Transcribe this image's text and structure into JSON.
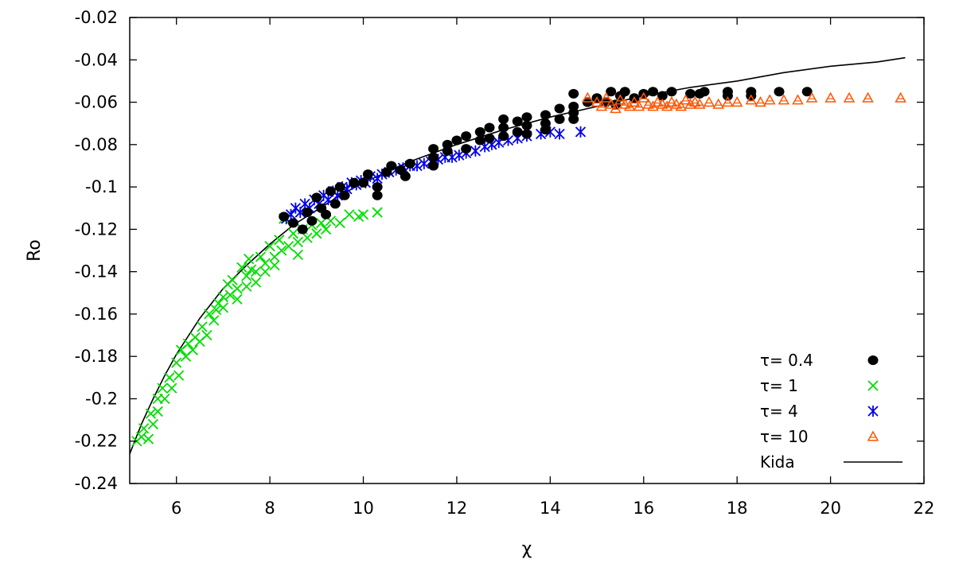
{
  "chart_data": {
    "type": "scatter",
    "title": "",
    "xlabel": "χ",
    "ylabel": "Ro",
    "xlim": [
      5,
      22
    ],
    "ylim": [
      -0.24,
      -0.02
    ],
    "xticks": [
      "6",
      "8",
      "10",
      "12",
      "14",
      "16",
      "18",
      "20",
      "22"
    ],
    "yticks": [
      "-0.02",
      "-0.04",
      "-0.06",
      "-0.08",
      "-0.1",
      "-0.12",
      "-0.14",
      "-0.16",
      "-0.18",
      "-0.2",
      "-0.22",
      "-0.24"
    ],
    "grid": false,
    "legend_position": "bottom-right",
    "series": [
      {
        "name": "τ= 0.4",
        "marker": "filled-circle",
        "color": "#000000",
        "points": [
          [
            8.3,
            -0.114
          ],
          [
            8.5,
            -0.117
          ],
          [
            8.7,
            -0.12
          ],
          [
            8.8,
            -0.112
          ],
          [
            8.9,
            -0.116
          ],
          [
            9.0,
            -0.105
          ],
          [
            9.1,
            -0.11
          ],
          [
            9.2,
            -0.113
          ],
          [
            9.3,
            -0.102
          ],
          [
            9.4,
            -0.108
          ],
          [
            9.5,
            -0.1
          ],
          [
            9.6,
            -0.104
          ],
          [
            9.8,
            -0.098
          ],
          [
            10.0,
            -0.098
          ],
          [
            10.1,
            -0.094
          ],
          [
            10.3,
            -0.1
          ],
          [
            10.3,
            -0.104
          ],
          [
            10.5,
            -0.093
          ],
          [
            10.6,
            -0.09
          ],
          [
            10.8,
            -0.092
          ],
          [
            10.9,
            -0.095
          ],
          [
            11.0,
            -0.089
          ],
          [
            11.5,
            -0.082
          ],
          [
            11.5,
            -0.086
          ],
          [
            11.5,
            -0.09
          ],
          [
            11.8,
            -0.08
          ],
          [
            11.8,
            -0.083
          ],
          [
            12.0,
            -0.078
          ],
          [
            12.2,
            -0.076
          ],
          [
            12.2,
            -0.082
          ],
          [
            12.5,
            -0.074
          ],
          [
            12.5,
            -0.078
          ],
          [
            12.7,
            -0.072
          ],
          [
            12.7,
            -0.077
          ],
          [
            13.0,
            -0.068
          ],
          [
            13.0,
            -0.072
          ],
          [
            13.0,
            -0.076
          ],
          [
            13.3,
            -0.069
          ],
          [
            13.3,
            -0.074
          ],
          [
            13.5,
            -0.067
          ],
          [
            13.5,
            -0.071
          ],
          [
            13.5,
            -0.075
          ],
          [
            13.9,
            -0.066
          ],
          [
            13.9,
            -0.07
          ],
          [
            13.9,
            -0.073
          ],
          [
            14.2,
            -0.063
          ],
          [
            14.2,
            -0.068
          ],
          [
            14.5,
            -0.056
          ],
          [
            14.5,
            -0.062
          ],
          [
            14.5,
            -0.065
          ],
          [
            14.5,
            -0.068
          ],
          [
            14.8,
            -0.06
          ],
          [
            15.0,
            -0.058
          ],
          [
            15.2,
            -0.06
          ],
          [
            15.3,
            -0.055
          ],
          [
            15.4,
            -0.061
          ],
          [
            15.5,
            -0.057
          ],
          [
            15.6,
            -0.055
          ],
          [
            15.8,
            -0.058
          ],
          [
            16.0,
            -0.056
          ],
          [
            16.2,
            -0.055
          ],
          [
            16.4,
            -0.057
          ],
          [
            16.6,
            -0.055
          ],
          [
            17.0,
            -0.056
          ],
          [
            17.2,
            -0.056
          ],
          [
            17.3,
            -0.055
          ],
          [
            17.8,
            -0.055
          ],
          [
            17.8,
            -0.057
          ],
          [
            18.3,
            -0.055
          ],
          [
            18.3,
            -0.057
          ],
          [
            18.9,
            -0.055
          ],
          [
            19.5,
            -0.055
          ]
        ]
      },
      {
        "name": "τ= 1",
        "marker": "cross",
        "color": "#00dd00",
        "points": [
          [
            5.15,
            -0.22
          ],
          [
            5.25,
            -0.218
          ],
          [
            5.3,
            -0.214
          ],
          [
            5.4,
            -0.219
          ],
          [
            5.45,
            -0.207
          ],
          [
            5.5,
            -0.212
          ],
          [
            5.6,
            -0.2
          ],
          [
            5.6,
            -0.206
          ],
          [
            5.7,
            -0.195
          ],
          [
            5.75,
            -0.2
          ],
          [
            5.85,
            -0.19
          ],
          [
            5.9,
            -0.195
          ],
          [
            6.0,
            -0.183
          ],
          [
            6.05,
            -0.189
          ],
          [
            6.1,
            -0.177
          ],
          [
            6.2,
            -0.18
          ],
          [
            6.25,
            -0.174
          ],
          [
            6.35,
            -0.177
          ],
          [
            6.4,
            -0.171
          ],
          [
            6.5,
            -0.173
          ],
          [
            6.55,
            -0.166
          ],
          [
            6.65,
            -0.17
          ],
          [
            6.7,
            -0.16
          ],
          [
            6.8,
            -0.163
          ],
          [
            6.85,
            -0.158
          ],
          [
            6.9,
            -0.155
          ],
          [
            7.0,
            -0.152
          ],
          [
            7.0,
            -0.157
          ],
          [
            7.1,
            -0.146
          ],
          [
            7.15,
            -0.151
          ],
          [
            7.2,
            -0.144
          ],
          [
            7.3,
            -0.148
          ],
          [
            7.3,
            -0.153
          ],
          [
            7.4,
            -0.138
          ],
          [
            7.5,
            -0.142
          ],
          [
            7.5,
            -0.147
          ],
          [
            7.55,
            -0.134
          ],
          [
            7.6,
            -0.139
          ],
          [
            7.7,
            -0.14
          ],
          [
            7.7,
            -0.145
          ],
          [
            7.8,
            -0.133
          ],
          [
            7.9,
            -0.136
          ],
          [
            7.9,
            -0.14
          ],
          [
            8.0,
            -0.128
          ],
          [
            8.1,
            -0.133
          ],
          [
            8.1,
            -0.137
          ],
          [
            8.2,
            -0.125
          ],
          [
            8.25,
            -0.13
          ],
          [
            8.3,
            -0.115
          ],
          [
            8.4,
            -0.128
          ],
          [
            8.5,
            -0.122
          ],
          [
            8.6,
            -0.126
          ],
          [
            8.6,
            -0.132
          ],
          [
            8.7,
            -0.12
          ],
          [
            8.8,
            -0.124
          ],
          [
            8.9,
            -0.118
          ],
          [
            9.0,
            -0.122
          ],
          [
            9.1,
            -0.117
          ],
          [
            9.2,
            -0.12
          ],
          [
            9.3,
            -0.116
          ],
          [
            9.5,
            -0.117
          ],
          [
            9.7,
            -0.113
          ],
          [
            9.9,
            -0.114
          ],
          [
            10.0,
            -0.113
          ],
          [
            10.3,
            -0.112
          ]
        ]
      },
      {
        "name": "τ= 4",
        "marker": "asterisk",
        "color": "#0000ee",
        "points": [
          [
            8.35,
            -0.115
          ],
          [
            8.45,
            -0.113
          ],
          [
            8.55,
            -0.11
          ],
          [
            8.65,
            -0.112
          ],
          [
            8.75,
            -0.108
          ],
          [
            8.85,
            -0.11
          ],
          [
            8.95,
            -0.106
          ],
          [
            9.05,
            -0.108
          ],
          [
            9.15,
            -0.104
          ],
          [
            9.25,
            -0.106
          ],
          [
            9.35,
            -0.102
          ],
          [
            9.45,
            -0.104
          ],
          [
            9.55,
            -0.1
          ],
          [
            9.65,
            -0.101
          ],
          [
            9.75,
            -0.098
          ],
          [
            9.85,
            -0.099
          ],
          [
            9.95,
            -0.097
          ],
          [
            10.05,
            -0.098
          ],
          [
            10.15,
            -0.095
          ],
          [
            10.3,
            -0.096
          ],
          [
            10.4,
            -0.094
          ],
          [
            10.55,
            -0.093
          ],
          [
            10.7,
            -0.092
          ],
          [
            10.85,
            -0.091
          ],
          [
            11.0,
            -0.09
          ],
          [
            11.15,
            -0.09
          ],
          [
            11.3,
            -0.089
          ],
          [
            11.45,
            -0.088
          ],
          [
            11.6,
            -0.087
          ],
          [
            11.75,
            -0.086
          ],
          [
            11.9,
            -0.086
          ],
          [
            12.05,
            -0.085
          ],
          [
            12.2,
            -0.084
          ],
          [
            12.4,
            -0.083
          ],
          [
            12.6,
            -0.081
          ],
          [
            12.75,
            -0.08
          ],
          [
            12.9,
            -0.079
          ],
          [
            13.1,
            -0.078
          ],
          [
            13.3,
            -0.077
          ],
          [
            13.5,
            -0.076
          ],
          [
            13.8,
            -0.075
          ],
          [
            14.0,
            -0.074
          ],
          [
            14.2,
            -0.075
          ],
          [
            14.65,
            -0.074
          ]
        ]
      },
      {
        "name": "τ= 10",
        "marker": "triangle",
        "color": "#ff5500",
        "points": [
          [
            14.8,
            -0.058
          ],
          [
            15.0,
            -0.06
          ],
          [
            15.1,
            -0.062
          ],
          [
            15.2,
            -0.058
          ],
          [
            15.3,
            -0.061
          ],
          [
            15.4,
            -0.063
          ],
          [
            15.5,
            -0.059
          ],
          [
            15.6,
            -0.061
          ],
          [
            15.7,
            -0.062
          ],
          [
            15.8,
            -0.06
          ],
          [
            15.9,
            -0.062
          ],
          [
            16.0,
            -0.058
          ],
          [
            16.1,
            -0.061
          ],
          [
            16.2,
            -0.062
          ],
          [
            16.3,
            -0.06
          ],
          [
            16.4,
            -0.061
          ],
          [
            16.5,
            -0.062
          ],
          [
            16.6,
            -0.06
          ],
          [
            16.7,
            -0.061
          ],
          [
            16.8,
            -0.062
          ],
          [
            16.9,
            -0.059
          ],
          [
            17.0,
            -0.061
          ],
          [
            17.1,
            -0.06
          ],
          [
            17.2,
            -0.061
          ],
          [
            17.4,
            -0.06
          ],
          [
            17.6,
            -0.061
          ],
          [
            17.8,
            -0.06
          ],
          [
            18.0,
            -0.06
          ],
          [
            18.3,
            -0.059
          ],
          [
            18.5,
            -0.06
          ],
          [
            18.7,
            -0.059
          ],
          [
            19.0,
            -0.059
          ],
          [
            19.3,
            -0.059
          ],
          [
            19.6,
            -0.058
          ],
          [
            20.0,
            -0.058
          ],
          [
            20.4,
            -0.058
          ],
          [
            20.8,
            -0.058
          ],
          [
            21.5,
            -0.058
          ]
        ]
      },
      {
        "name": "Kida",
        "marker": "line",
        "color": "#000000",
        "points": [
          [
            5.0,
            -0.226
          ],
          [
            5.25,
            -0.212
          ],
          [
            5.5,
            -0.2
          ],
          [
            5.75,
            -0.189
          ],
          [
            6.0,
            -0.179
          ],
          [
            6.5,
            -0.162
          ],
          [
            7.0,
            -0.148
          ],
          [
            7.5,
            -0.137
          ],
          [
            8.0,
            -0.127
          ],
          [
            8.5,
            -0.118
          ],
          [
            9.0,
            -0.111
          ],
          [
            9.5,
            -0.104
          ],
          [
            10.0,
            -0.098
          ],
          [
            11.0,
            -0.088
          ],
          [
            12.0,
            -0.08
          ],
          [
            13.0,
            -0.073
          ],
          [
            14.0,
            -0.067
          ],
          [
            15.0,
            -0.062
          ],
          [
            16.0,
            -0.057
          ],
          [
            17.0,
            -0.053
          ],
          [
            18.0,
            -0.05
          ],
          [
            19.0,
            -0.046
          ],
          [
            20.0,
            -0.043
          ],
          [
            21.0,
            -0.041
          ],
          [
            21.6,
            -0.039
          ]
        ]
      }
    ]
  }
}
